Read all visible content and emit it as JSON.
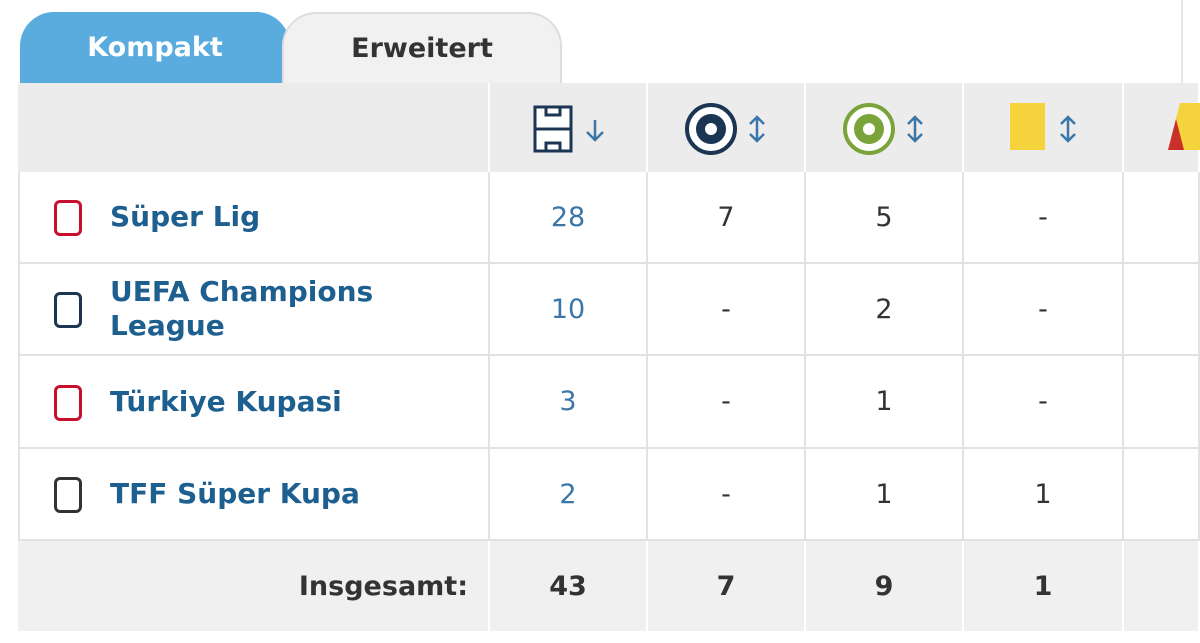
{
  "tabs": [
    "Kompakt",
    "Erweitert"
  ],
  "table": {
    "rows": [
      [
        "Süper Lig",
        28,
        7,
        5,
        "-"
      ],
      [
        "UEFA Champions League",
        10,
        "-",
        2,
        "-"
      ],
      [
        "Türkiye Kupasi",
        3,
        "-",
        1,
        "-"
      ],
      [
        "TFF Süper Kupa",
        2,
        "-",
        1,
        1
      ]
    ],
    "total": [
      "Insgesamt:",
      43,
      7,
      9,
      1
    ]
  }
}
